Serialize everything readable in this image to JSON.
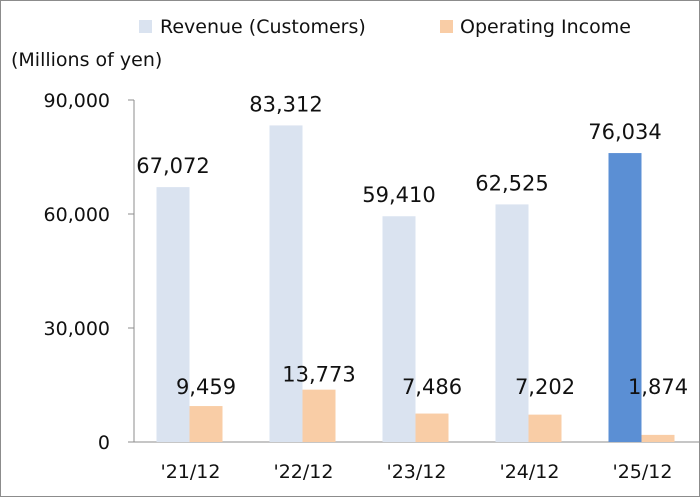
{
  "chart_data": {
    "type": "bar",
    "title": "",
    "xlabel": "",
    "ylabel": "(Millions of yen)",
    "ylim": [
      0,
      90000
    ],
    "yticks": [
      0,
      30000,
      60000,
      90000
    ],
    "ytick_labels": [
      "0",
      "30,000",
      "60,000",
      "90,000"
    ],
    "categories": [
      "'21/12",
      "'22/12",
      "'23/12",
      "'24/12",
      "'25/12"
    ],
    "series": [
      {
        "name": "Revenue (Customers)",
        "color": "#dae3f0",
        "highlight_color": "#5b8fd4",
        "highlight_index": 4,
        "values": [
          67072,
          83312,
          59410,
          62525,
          76034
        ],
        "labels": [
          "67,072",
          "83,312",
          "59,410",
          "62,525",
          "76,034"
        ]
      },
      {
        "name": "Operating Income",
        "color": "#f9cda6",
        "values": [
          9459,
          13773,
          7486,
          7202,
          1874
        ],
        "labels": [
          "9,459",
          "13,773",
          "7,486",
          "7,202",
          "1,874"
        ]
      }
    ],
    "legend_position": "top",
    "grid": false
  }
}
